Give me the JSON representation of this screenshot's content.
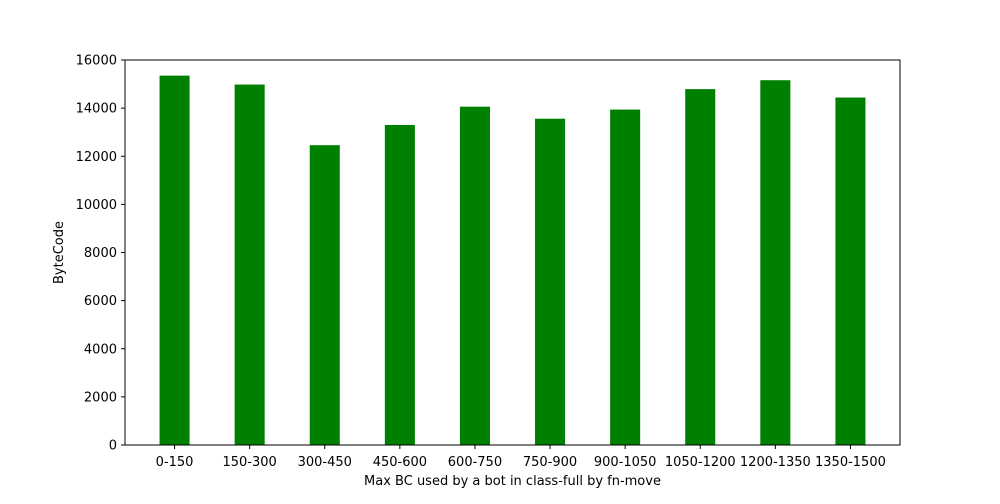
{
  "chart_data": {
    "type": "bar",
    "title": "",
    "xlabel": "Max BC used by a bot in class-full by fn-move",
    "ylabel": "ByteCode",
    "categories": [
      "0-150",
      "150-300",
      "300-450",
      "450-600",
      "600-750",
      "750-900",
      "900-1050",
      "1050-1200",
      "1200-1350",
      "1350-1500"
    ],
    "values": [
      15350,
      14980,
      12460,
      13300,
      14060,
      13560,
      13940,
      14790,
      15160,
      14440
    ],
    "ylim": [
      0,
      16000
    ],
    "yticks": [
      0,
      2000,
      4000,
      6000,
      8000,
      10000,
      12000,
      14000,
      16000
    ],
    "bar_color": "#008000",
    "grid": false,
    "legend": "none"
  }
}
